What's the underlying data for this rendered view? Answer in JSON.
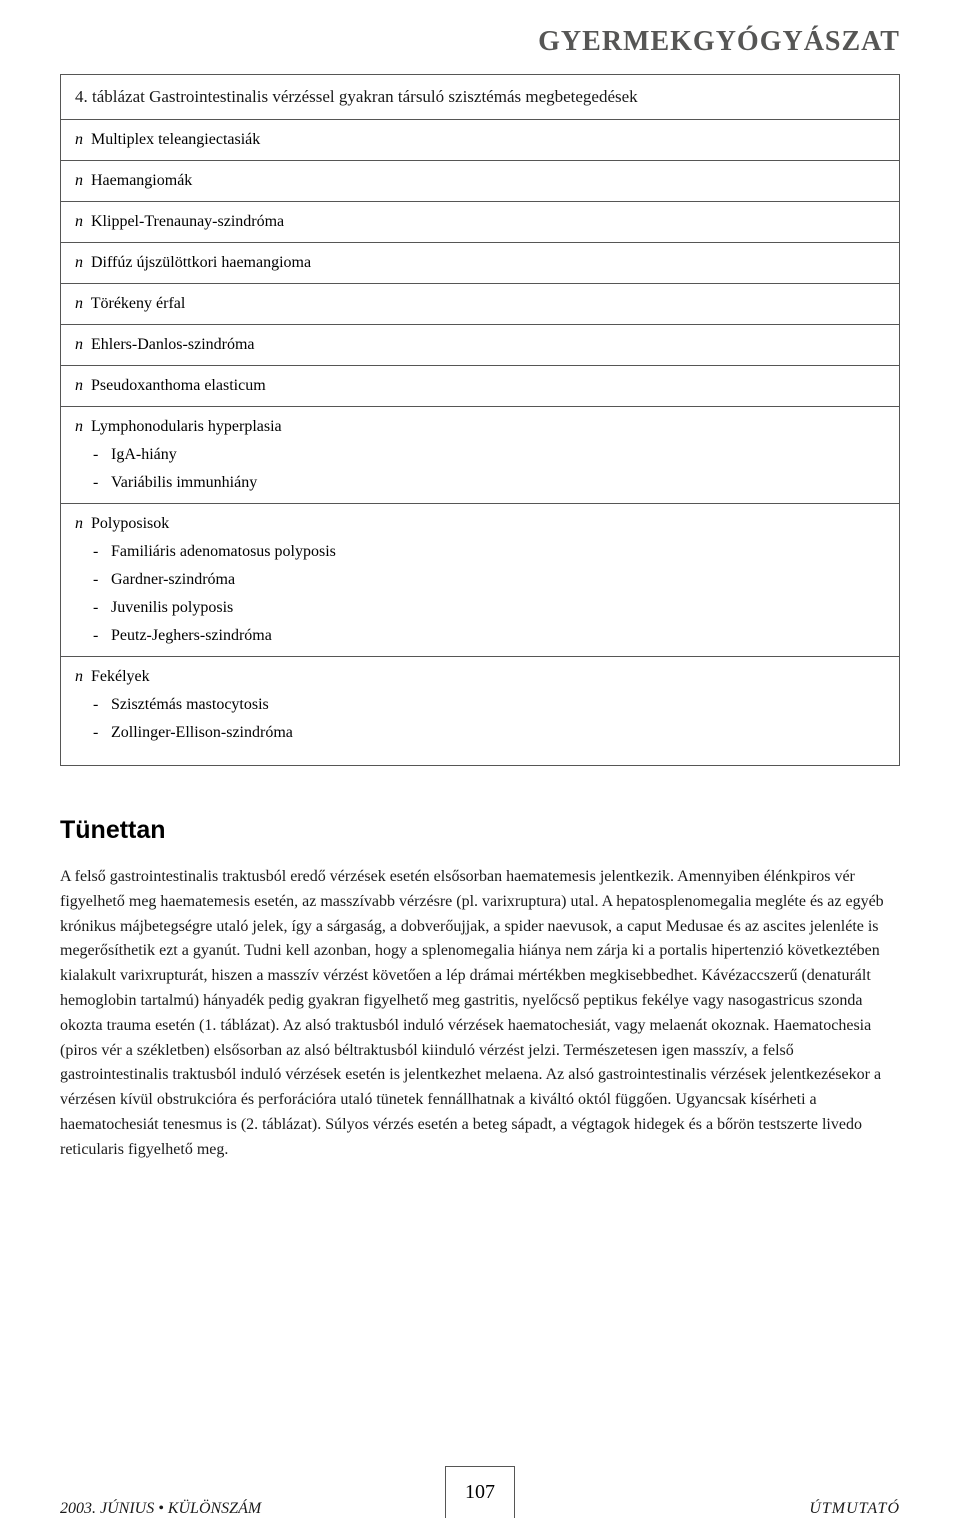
{
  "colors": {
    "border": "#565655",
    "text": "#1a1a1a",
    "heading": "#565655",
    "background": "#ffffff"
  },
  "header": {
    "title": "GYERMEKGYÓGYÁSZAT"
  },
  "table": {
    "title": "4. táblázat Gastrointestinalis vérzéssel gyakran társuló szisztémás megbetegedések",
    "rows": [
      {
        "type": "main",
        "text": "Multiplex teleangiectasiák"
      },
      {
        "type": "main",
        "text": "Haemangiomák"
      },
      {
        "type": "main",
        "text": "Klippel-Trenaunay-szindróma"
      },
      {
        "type": "main",
        "text": "Diffúz újszülöttkori haemangioma"
      },
      {
        "type": "main",
        "text": "Törékeny érfal"
      },
      {
        "type": "main",
        "text": "Ehlers-Danlos-szindróma"
      },
      {
        "type": "main",
        "text": "Pseudoxanthoma elasticum"
      },
      {
        "type": "group",
        "text": "Lymphonodularis hyperplasia",
        "subs": [
          "IgA-hiány",
          "Variábilis immunhiány"
        ]
      },
      {
        "type": "group",
        "text": "Polyposisok",
        "subs": [
          "Familiáris adenomatosus polyposis",
          "Gardner-szindróma",
          "Juvenilis polyposis",
          "Peutz-Jeghers-szindróma"
        ]
      },
      {
        "type": "group",
        "text": "Fekélyek",
        "subs": [
          "Szisztémás mastocytosis",
          "Zollinger-Ellison-szindróma"
        ]
      }
    ]
  },
  "section": {
    "heading": "Tünettan",
    "body": "A felső gastrointestinalis traktusból eredő vérzések esetén elsősorban haematemesis jelentkezik. Amennyiben élénkpiros vér figyelhető meg haematemesis esetén, az masszívabb vérzésre (pl. varixruptura) utal. A hepatosplenomegalia megléte és az egyéb krónikus májbetegségre utaló jelek, így a sárgaság, a dobverőujjak, a spider naevusok, a caput Medusae és az ascites jelenléte is megerősíthetik ezt a gyanút. Tudni kell azonban, hogy a splenomegalia hiánya nem zárja ki a portalis hipertenzió következtében kialakult varixrupturát, hiszen a masszív vérzést követően a lép drámai mértékben megkisebbedhet. Kávézaccszerű (denaturált hemoglobin tartalmú) hányadék pedig gyakran figyelhető meg gastritis, nyelőcső peptikus fekélye vagy nasogastricus szonda okozta trauma esetén (1. táblázat). Az alsó traktusból induló vérzések haematochesiát, vagy melaenát okoznak. Haematochesia (piros vér a székletben) elsősorban az alsó béltraktusból kiinduló vérzést jelzi. Természetesen igen masszív, a felső gastrointestinalis traktusból induló vérzések esetén is jelentkezhet melaena. Az alsó gastrointestinalis vérzések jelentkezésekor a vérzésen kívül obstrukcióra és perforációra utaló tünetek fennállhatnak a kiváltó októl függően. Ugyancsak kísérheti a haematochesiát tenesmus is (2. táblázat). Súlyos vérzés esetén a beteg sápadt, a végtagok hidegek és a bőrön testszerte livedo reticularis figyelhető meg."
  },
  "footer": {
    "left": "2003. JÚNIUS • KÜLÖNSZÁM",
    "page": "107",
    "right": "ÚTMUTATÓ"
  }
}
